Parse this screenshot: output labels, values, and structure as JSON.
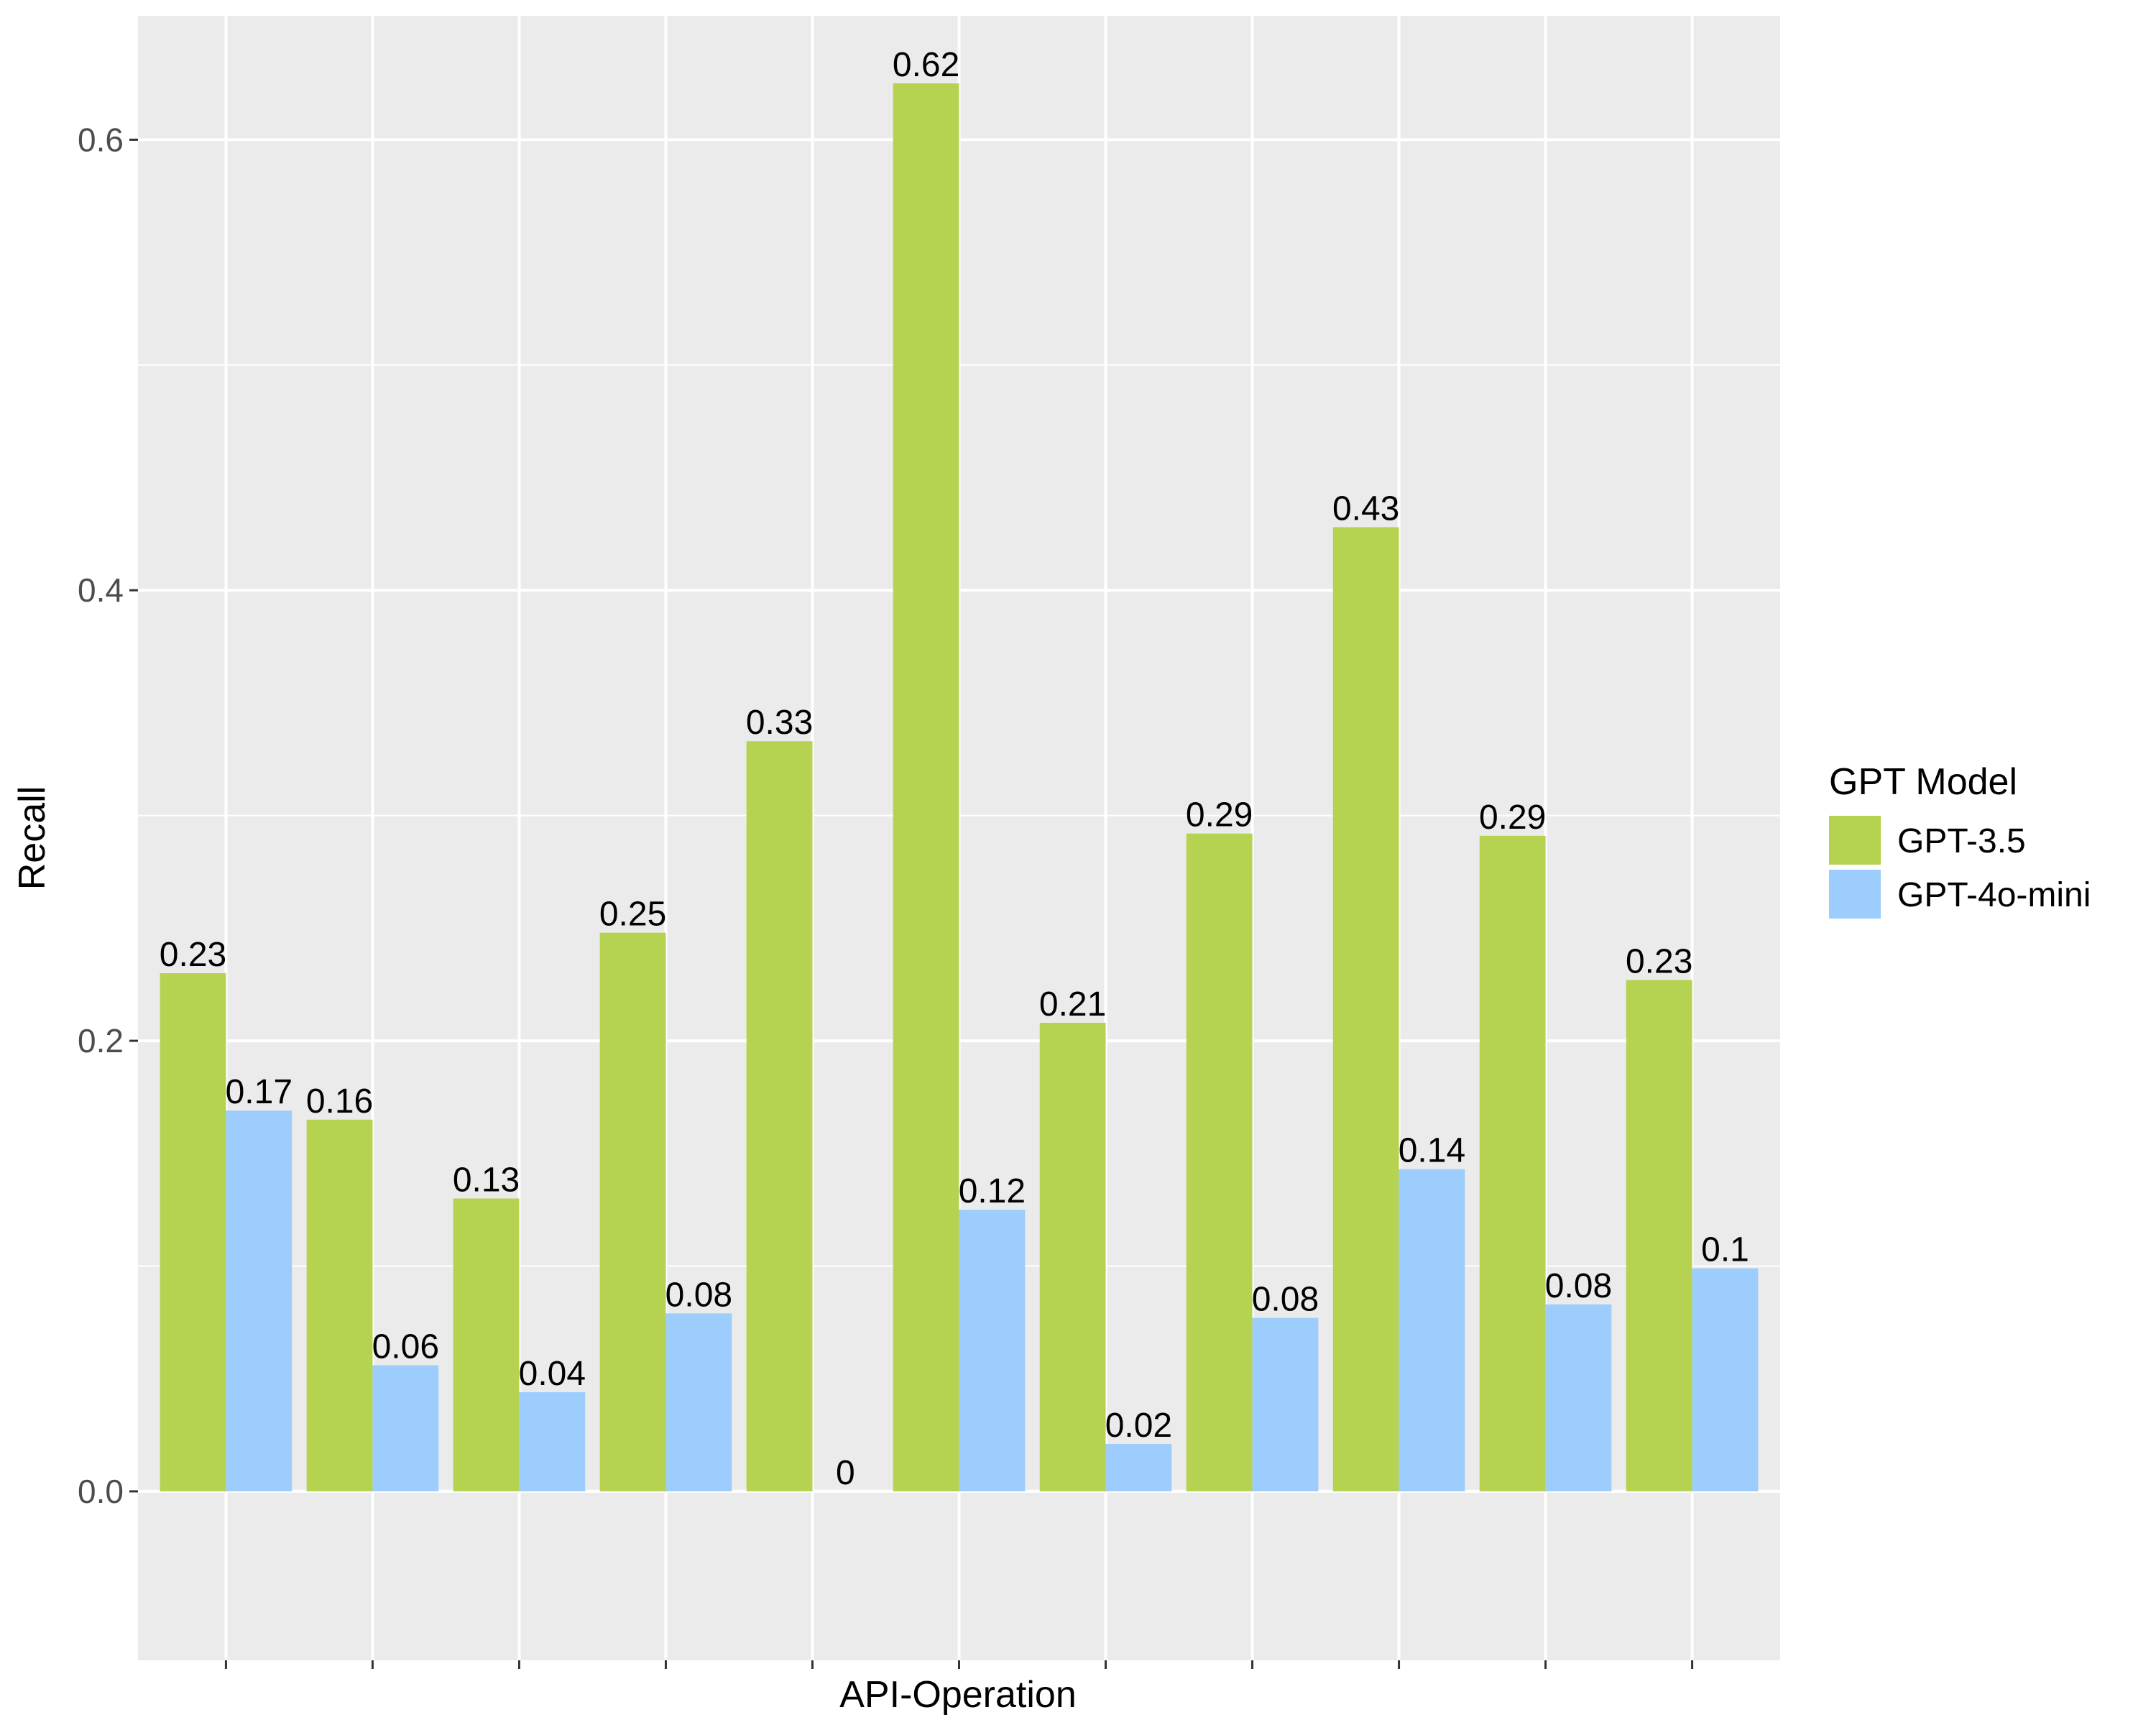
{
  "chart_data": {
    "type": "bar",
    "xlabel": "API-Operation",
    "ylabel": "Recall",
    "ylim": [
      -0.075,
      0.655
    ],
    "yticks": [
      0.0,
      0.2,
      0.4,
      0.6
    ],
    "ytick_labels": [
      "0.0",
      "0.2",
      "0.4",
      "0.6"
    ],
    "categories": [
      "",
      "",
      "",
      "",
      "",
      "",
      "",
      "",
      "",
      "",
      ""
    ],
    "legend": {
      "title": "GPT Model",
      "position": "right"
    },
    "grid": true,
    "panel_background": "#ebebeb",
    "series": [
      {
        "name": "GPT-3.5",
        "color": "#b5d350",
        "values": [
          0.23,
          0.165,
          0.13,
          0.248,
          0.333,
          0.625,
          0.208,
          0.292,
          0.428,
          0.291,
          0.227
        ],
        "labels": [
          "0.23",
          "0.16",
          "0.13",
          "0.25",
          "0.33",
          "0.62",
          "0.21",
          "0.29",
          "0.43",
          "0.29",
          "0.23"
        ]
      },
      {
        "name": "GPT-4o-mini",
        "color": "#9dcdfc",
        "values": [
          0.169,
          0.056,
          0.044,
          0.079,
          0.0,
          0.125,
          0.021,
          0.077,
          0.143,
          0.083,
          0.099
        ],
        "labels": [
          "0.17",
          "0.06",
          "0.04",
          "0.08",
          "0",
          "0.12",
          "0.02",
          "0.08",
          "0.14",
          "0.08",
          "0.1"
        ]
      }
    ]
  }
}
